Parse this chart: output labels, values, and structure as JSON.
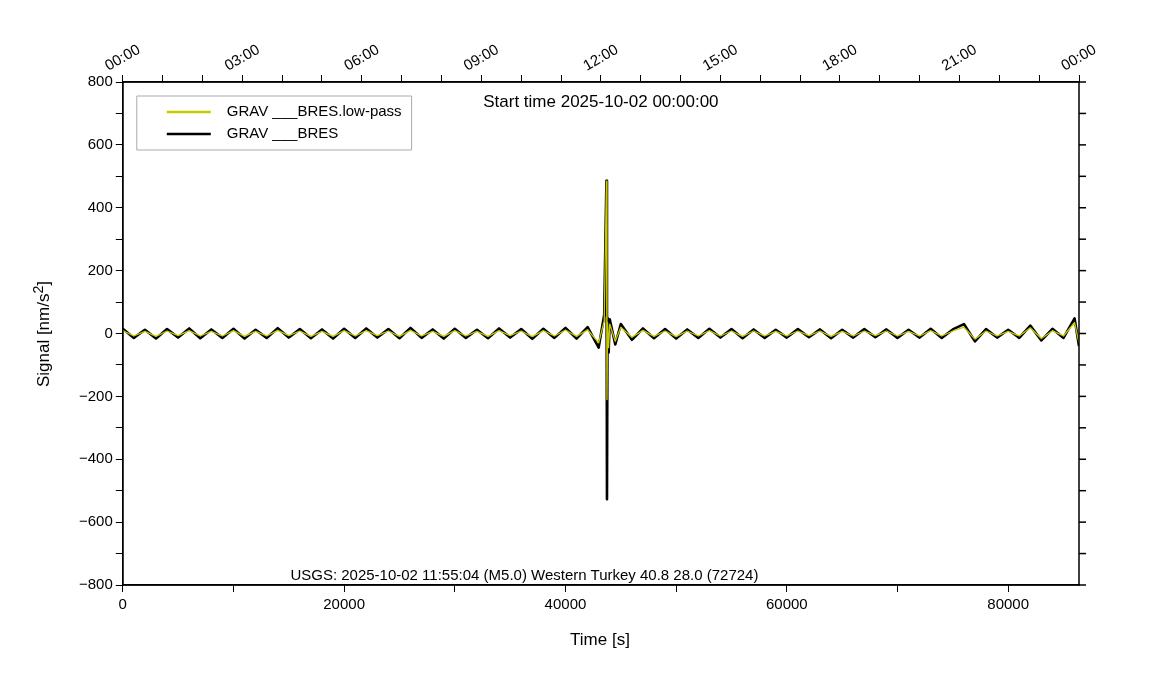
{
  "chart_data": {
    "type": "line",
    "annotations": [
      "Start time 2025-10-02 00:00:00",
      "USGS: 2025-10-02 11:55:04 (M5.0) Western Turkey 40.8 28.0 (72724)"
    ],
    "xlabel": "Time [s]",
    "ylabel": "Signal [nm/s$^{2}$]",
    "x": [
      0,
      1000,
      2000,
      3000,
      4000,
      5000,
      6000,
      7000,
      8000,
      9000,
      10000,
      11000,
      12000,
      13000,
      14000,
      15000,
      16000,
      17000,
      18000,
      19000,
      20000,
      21000,
      22000,
      23000,
      24000,
      25000,
      26000,
      27000,
      28000,
      29000,
      30000,
      31000,
      32000,
      33000,
      34000,
      35000,
      36000,
      37000,
      38000,
      39000,
      40000,
      41000,
      42000,
      43000,
      43500,
      43700,
      43750,
      43800,
      43900,
      44000,
      44500,
      45000,
      46000,
      47000,
      48000,
      49000,
      50000,
      51000,
      52000,
      53000,
      54000,
      55000,
      56000,
      57000,
      58000,
      59000,
      60000,
      61000,
      62000,
      63000,
      64000,
      65000,
      66000,
      67000,
      68000,
      69000,
      70000,
      71000,
      72000,
      73000,
      74000,
      75000,
      76000,
      77000,
      78000,
      79000,
      80000,
      81000,
      82000,
      83000,
      84000,
      85000,
      86000,
      86400
    ],
    "series": [
      {
        "name": "GRAV ___BRES.low-pass",
        "color": "#c8c800",
        "values": [
          9,
          -8,
          7,
          -9,
          8,
          -7,
          9,
          -8,
          7,
          -8,
          9,
          -9,
          7,
          -8,
          10,
          -7,
          8,
          -9,
          7,
          -9,
          9,
          -8,
          9,
          -7,
          8,
          -9,
          10,
          -8,
          7,
          -9,
          9,
          -8,
          7,
          -9,
          9,
          -7,
          8,
          -10,
          9,
          -8,
          11,
          -9,
          12,
          -30,
          40,
          485,
          -210,
          35,
          -45,
          30,
          -25,
          20,
          -12,
          10,
          -9,
          8,
          -10,
          8,
          -8,
          9,
          -8,
          8,
          -9,
          8,
          -8,
          7,
          -8,
          8,
          -7,
          8,
          -9,
          7,
          -8,
          8,
          -7,
          8,
          -8,
          7,
          -8,
          9,
          -8,
          8,
          20,
          -18,
          8,
          -8,
          7,
          -8,
          18,
          -16,
          9,
          -8,
          35,
          -30
        ]
      },
      {
        "name": "GRAV ___BRES",
        "color": "#000000",
        "values": [
          15,
          -14,
          12,
          -16,
          14,
          -13,
          16,
          -15,
          13,
          -14,
          15,
          -16,
          12,
          -14,
          17,
          -13,
          14,
          -15,
          13,
          -16,
          15,
          -14,
          16,
          -13,
          14,
          -15,
          18,
          -14,
          13,
          -16,
          15,
          -14,
          12,
          -15,
          16,
          -13,
          14,
          -17,
          15,
          -14,
          18,
          -16,
          20,
          -45,
          60,
          486,
          -527,
          50,
          -60,
          45,
          -35,
          30,
          -20,
          16,
          -15,
          14,
          -16,
          13,
          -14,
          15,
          -13,
          14,
          -15,
          13,
          -14,
          12,
          -13,
          14,
          -12,
          13,
          -15,
          12,
          -13,
          14,
          -12,
          13,
          -14,
          12,
          -13,
          15,
          -14,
          13,
          30,
          -25,
          14,
          -13,
          12,
          -14,
          25,
          -22,
          15,
          -14,
          48,
          -40
        ]
      }
    ],
    "xlim": [
      0,
      86400
    ],
    "xticks": [
      0,
      {
        "value": 10000,
        "label": null
      },
      20000,
      {
        "value": 30000,
        "label": null
      },
      40000,
      {
        "value": 50000,
        "label": null
      },
      60000,
      {
        "value": 70000,
        "label": null
      },
      80000
    ],
    "x2lim": [
      "2025-10-02T00:00",
      "2025-10-03T00:00"
    ],
    "x2ticks": [
      {
        "value": "2025-10-02T00:00",
        "label": "00:00"
      },
      {
        "value": "2025-10-02T01:00",
        "label": null
      },
      {
        "value": "2025-10-02T02:00",
        "label": null
      },
      {
        "value": "2025-10-02T03:00",
        "label": "03:00"
      },
      {
        "value": "2025-10-02T04:00",
        "label": null
      },
      {
        "value": "2025-10-02T05:00",
        "label": null
      },
      {
        "value": "2025-10-02T06:00",
        "label": "06:00"
      },
      {
        "value": "2025-10-02T07:00",
        "label": null
      },
      {
        "value": "2025-10-02T08:00",
        "label": null
      },
      {
        "value": "2025-10-02T09:00",
        "label": "09:00"
      },
      {
        "value": "2025-10-02T10:00",
        "label": null
      },
      {
        "value": "2025-10-02T11:00",
        "label": null
      },
      {
        "value": "2025-10-02T12:00",
        "label": "12:00"
      },
      {
        "value": "2025-10-02T13:00",
        "label": null
      },
      {
        "value": "2025-10-02T14:00",
        "label": null
      },
      {
        "value": "2025-10-02T15:00",
        "label": "15:00"
      },
      {
        "value": "2025-10-02T16:00",
        "label": null
      },
      {
        "value": "2025-10-02T17:00",
        "label": null
      },
      {
        "value": "2025-10-02T18:00",
        "label": "18:00"
      },
      {
        "value": "2025-10-02T19:00",
        "label": null
      },
      {
        "value": "2025-10-02T20:00",
        "label": null
      },
      {
        "value": "2025-10-02T21:00",
        "label": "21:00"
      },
      {
        "value": "2025-10-02T22:00",
        "label": null
      },
      {
        "value": "2025-10-02T23:00",
        "label": null
      },
      {
        "value": "2025-10-03T00:00",
        "label": "00:00"
      }
    ],
    "ylim": [
      -800,
      800
    ],
    "yticks": [
      {
        "value": -800,
        "label": "−800"
      },
      {
        "value": -700,
        "label": null
      },
      {
        "value": -600,
        "label": "−600"
      },
      {
        "value": -500,
        "label": null
      },
      {
        "value": -400,
        "label": "−400"
      },
      {
        "value": -300,
        "label": null
      },
      {
        "value": -200,
        "label": "−200"
      },
      {
        "value": -100,
        "label": null
      },
      0,
      {
        "value": 100,
        "label": null
      },
      200,
      {
        "value": 300,
        "label": null
      },
      400,
      {
        "value": 500,
        "label": null
      },
      600,
      {
        "value": 700,
        "label": null
      },
      800
    ],
    "grid": false,
    "legend": "top left",
    "marker": "none",
    "line_style": "solid"
  }
}
